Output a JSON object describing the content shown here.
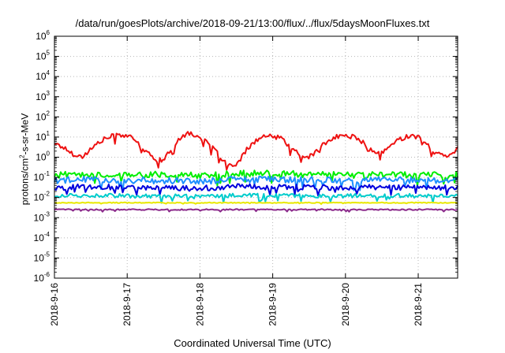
{
  "chart_data": {
    "type": "line",
    "title": "/data/run/goesPlots/archive/2018-09-21/13:00/flux/../flux/5daysMoonFluxes.txt",
    "xlabel": "Coordinated Universal Time (UTC)",
    "ylabel": {
      "prefix": "protons/cm",
      "superscript": "2",
      "suffix": "-s-sr-MeV"
    },
    "yscale": "log",
    "ylim_exponents": [
      -6,
      6
    ],
    "y_tick_exponents": [
      -6,
      -5,
      -4,
      -3,
      -2,
      -1,
      0,
      1,
      2,
      3,
      4,
      5,
      6
    ],
    "xlim": [
      "2018-09-16 00:00",
      "2018-09-21 13:00"
    ],
    "x_ticks": [
      "2018-9-16",
      "2018-9-17",
      "2018-9-18",
      "2018-9-19",
      "2018-9-20",
      "2018-9-21"
    ],
    "grid": true,
    "x_unit": "day offset from 2018-09-16 00:00 UTC",
    "series": [
      {
        "color": "#ee1111",
        "x": [
          0,
          0.125,
          0.25,
          0.375,
          0.5,
          0.625,
          0.75,
          0.875,
          1.0,
          1.125,
          1.25,
          1.375,
          1.5,
          1.625,
          1.75,
          1.875,
          2.0,
          2.125,
          2.25,
          2.375,
          2.5,
          2.625,
          2.75,
          2.875,
          3.0,
          3.125,
          3.25,
          3.375,
          3.5,
          3.625,
          3.75,
          3.875,
          4.0,
          4.125,
          4.25,
          4.375,
          4.5,
          4.625,
          4.75,
          4.875,
          5.0,
          5.125,
          5.25,
          5.375,
          5.5,
          5.542
        ],
        "values": [
          5.0,
          3.0,
          1.5,
          1.0,
          2.5,
          6.0,
          10.0,
          13.0,
          12.0,
          6.0,
          2.0,
          0.8,
          0.7,
          3.0,
          12.0,
          15.0,
          10.0,
          4.0,
          1.5,
          0.4,
          0.35,
          2.0,
          6.0,
          10.0,
          11.0,
          8.0,
          3.0,
          1.2,
          1.0,
          2.5,
          6.0,
          10.0,
          12.0,
          10.0,
          5.0,
          1.8,
          1.5,
          4.0,
          8.0,
          12.0,
          10.0,
          4.0,
          1.5,
          1.2,
          2.0,
          4.0
        ]
      },
      {
        "color": "#00ee00",
        "x": [
          0,
          0.5,
          1.0,
          1.5,
          2.0,
          2.5,
          3.0,
          3.5,
          4.0,
          4.5,
          5.0,
          5.542
        ],
        "values": [
          0.13,
          0.15,
          0.13,
          0.14,
          0.12,
          0.15,
          0.16,
          0.14,
          0.13,
          0.14,
          0.13,
          0.14
        ]
      },
      {
        "color": "#1e90ff",
        "x": [
          0,
          0.5,
          1.0,
          1.5,
          2.0,
          2.5,
          3.0,
          3.5,
          4.0,
          4.5,
          5.0,
          5.542
        ],
        "values": [
          0.07,
          0.08,
          0.07,
          0.07,
          0.065,
          0.08,
          0.08,
          0.075,
          0.07,
          0.08,
          0.07,
          0.075
        ]
      },
      {
        "color": "#0000dd",
        "x": [
          0,
          0.5,
          1.0,
          1.5,
          2.0,
          2.5,
          3.0,
          3.5,
          4.0,
          4.5,
          5.0,
          5.542
        ],
        "values": [
          0.03,
          0.035,
          0.03,
          0.032,
          0.028,
          0.035,
          0.033,
          0.032,
          0.03,
          0.035,
          0.03,
          0.032
        ]
      },
      {
        "color": "#00cccc",
        "x": [
          0,
          0.5,
          1.0,
          1.5,
          2.0,
          2.5,
          3.0,
          3.5,
          4.0,
          4.5,
          5.0,
          5.542
        ],
        "values": [
          0.012,
          0.013,
          0.012,
          0.012,
          0.011,
          0.013,
          0.013,
          0.012,
          0.012,
          0.013,
          0.012,
          0.012
        ]
      },
      {
        "color": "#e8e800",
        "x": [
          0,
          0.5,
          1.0,
          1.5,
          2.0,
          2.5,
          3.0,
          3.5,
          4.0,
          4.5,
          5.0,
          5.542
        ],
        "values": [
          0.0055,
          0.0055,
          0.0055,
          0.0055,
          0.0055,
          0.0055,
          0.0055,
          0.0055,
          0.0055,
          0.0055,
          0.0055,
          0.0055
        ]
      },
      {
        "color": "#8b2a8b",
        "x": [
          0,
          0.5,
          1.0,
          1.5,
          2.0,
          2.5,
          3.0,
          3.5,
          4.0,
          4.5,
          5.0,
          5.542
        ],
        "values": [
          0.0025,
          0.0025,
          0.0025,
          0.0025,
          0.0025,
          0.0025,
          0.0025,
          0.0025,
          0.0025,
          0.0025,
          0.0025,
          0.0025
        ]
      }
    ]
  }
}
